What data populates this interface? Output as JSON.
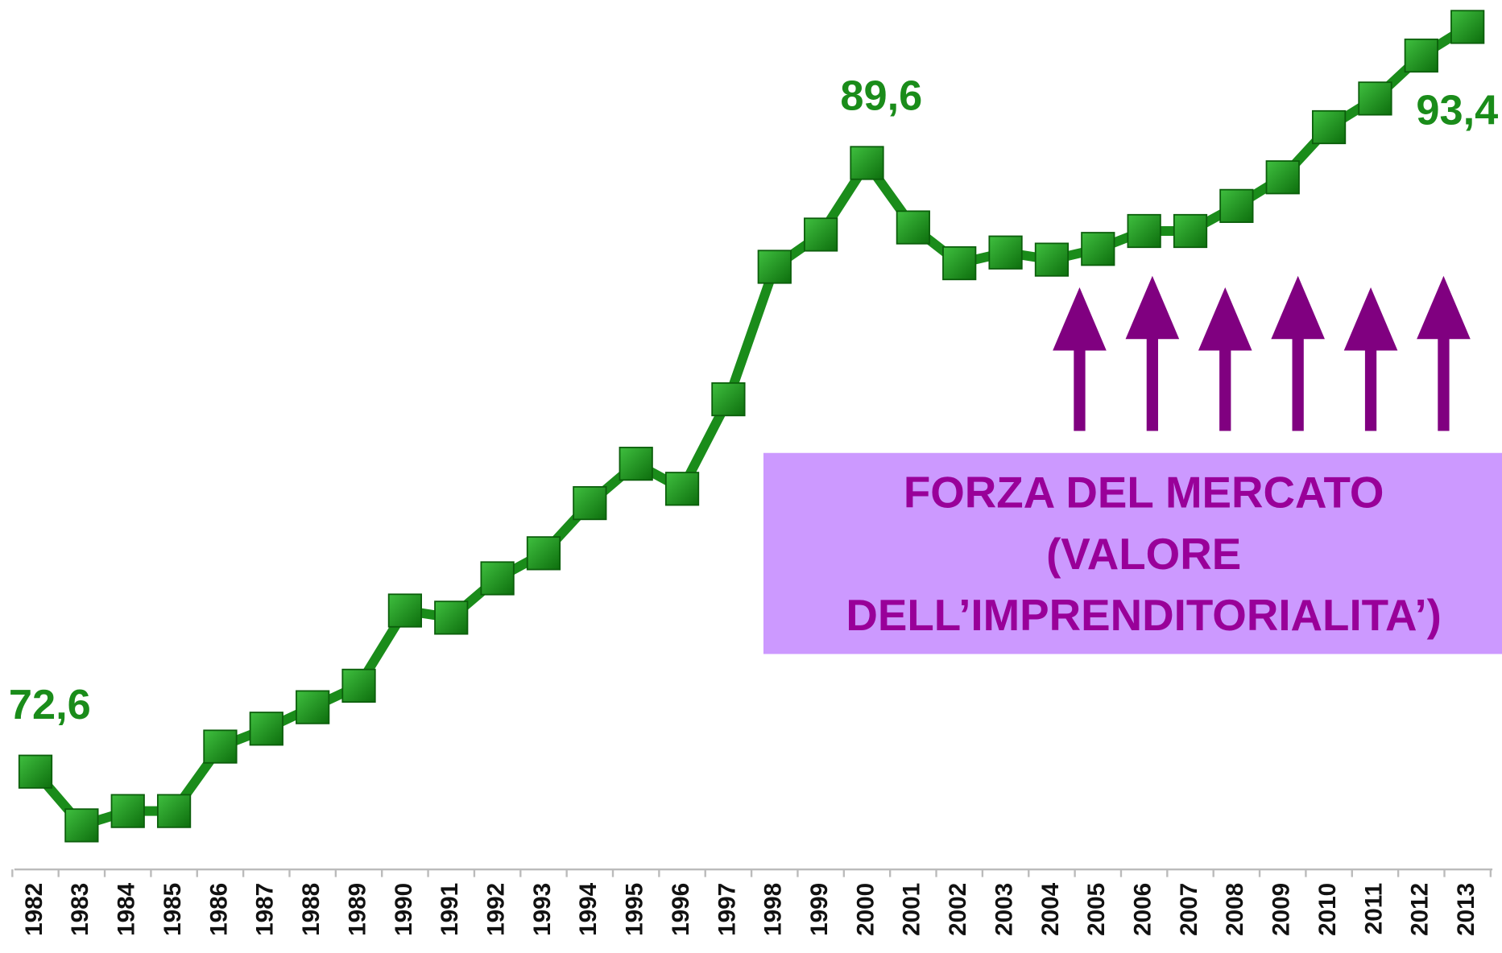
{
  "chart_data": {
    "type": "line",
    "categories": [
      "1982",
      "1983",
      "1984",
      "1985",
      "1986",
      "1987",
      "1988",
      "1989",
      "1990",
      "1991",
      "1992",
      "1993",
      "1994",
      "1995",
      "1996",
      "1997",
      "1998",
      "1999",
      "2000",
      "2001",
      "2002",
      "2003",
      "2004",
      "2005",
      "2006",
      "2007",
      "2008",
      "2009",
      "2010",
      "2011",
      "2012",
      "2013"
    ],
    "values": [
      72.6,
      71.1,
      71.5,
      71.5,
      73.3,
      73.8,
      74.4,
      75.0,
      77.1,
      76.9,
      78.0,
      78.7,
      80.1,
      81.2,
      80.5,
      83.0,
      86.7,
      87.6,
      89.6,
      87.8,
      86.8,
      87.1,
      86.9,
      87.2,
      87.7,
      87.7,
      88.4,
      89.2,
      90.6,
      91.4,
      92.6,
      93.4
    ],
    "value_labels": [
      "72,6",
      null,
      null,
      null,
      null,
      null,
      null,
      null,
      null,
      null,
      null,
      null,
      null,
      null,
      null,
      null,
      null,
      null,
      "89,6",
      null,
      null,
      null,
      null,
      null,
      null,
      null,
      null,
      null,
      null,
      null,
      null,
      "93,4"
    ],
    "color": "#1a8c1a",
    "annotation": {
      "lines": [
        "FORZA DEL MERCATO",
        "(VALORE",
        "DELL’IMPRENDITORIALITA’)"
      ],
      "color": "#990099",
      "background": "#cc99ff",
      "arrow_color": "#800080"
    }
  }
}
